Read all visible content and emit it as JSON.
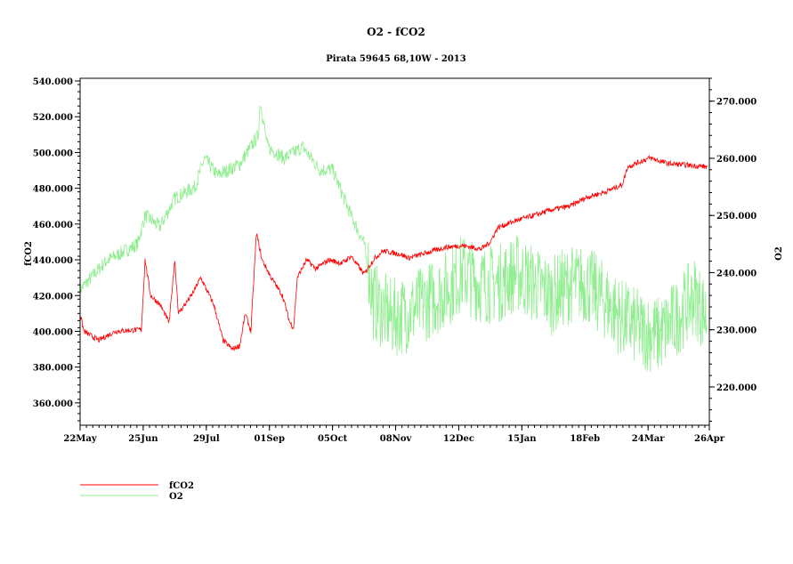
{
  "chart_data": {
    "type": "line",
    "title": "O2 - fCO2",
    "subtitle": "Pirata 59645 68,10W - 2013",
    "xlabel": "",
    "ylabel_left": "fCO2",
    "ylabel_right": "O2",
    "x_unit": "days since 22May",
    "xlim": [
      0,
      339
    ],
    "x_ticks": [
      {
        "day": 0,
        "label": "22May"
      },
      {
        "day": 34,
        "label": "25Jun"
      },
      {
        "day": 68,
        "label": "29Jul"
      },
      {
        "day": 102,
        "label": "01Sep"
      },
      {
        "day": 136,
        "label": "05Oct"
      },
      {
        "day": 170,
        "label": "08Nov"
      },
      {
        "day": 204,
        "label": "12Dec"
      },
      {
        "day": 238,
        "label": "15Jan"
      },
      {
        "day": 272,
        "label": "18Feb"
      },
      {
        "day": 306,
        "label": "24Mar"
      },
      {
        "day": 339,
        "label": "26Apr"
      }
    ],
    "ylim_left": [
      347.5,
      541.5
    ],
    "y_ticks_left": [
      "360.000",
      "380.000",
      "400.000",
      "420.000",
      "440.000",
      "460.000",
      "480.000",
      "500.000",
      "520.000",
      "540.000"
    ],
    "ylim_right": [
      213.3,
      274.0
    ],
    "y_ticks_right": [
      "220.000",
      "230.000",
      "240.000",
      "250.000",
      "260.000",
      "270.000"
    ],
    "legend": [
      {
        "name": "fCO2",
        "color": "#ff0000"
      },
      {
        "name": "O2",
        "color": "#90ee90"
      }
    ],
    "legend_placement": "bottom-left",
    "series": [
      {
        "name": "fCO2",
        "axis": "left",
        "color": "#ff0000",
        "points": [
          [
            0,
            410
          ],
          [
            2,
            400
          ],
          [
            10,
            395
          ],
          [
            19,
            400
          ],
          [
            33,
            401
          ],
          [
            35,
            440
          ],
          [
            38,
            420
          ],
          [
            43,
            415
          ],
          [
            48,
            405
          ],
          [
            51,
            440
          ],
          [
            53,
            410
          ],
          [
            60,
            420
          ],
          [
            65,
            430
          ],
          [
            72,
            415
          ],
          [
            77,
            395
          ],
          [
            82,
            390
          ],
          [
            86,
            392
          ],
          [
            89,
            410
          ],
          [
            92,
            400
          ],
          [
            95,
            455
          ],
          [
            98,
            440
          ],
          [
            103,
            430
          ],
          [
            109,
            420
          ],
          [
            113,
            405
          ],
          [
            115,
            402
          ],
          [
            117,
            430
          ],
          [
            122,
            440
          ],
          [
            127,
            435
          ],
          [
            134,
            440
          ],
          [
            141,
            438
          ],
          [
            146,
            442
          ],
          [
            153,
            432
          ],
          [
            158,
            440
          ],
          [
            163,
            445
          ],
          [
            173,
            443
          ],
          [
            177,
            441
          ],
          [
            187,
            444
          ],
          [
            197,
            447
          ],
          [
            206,
            448
          ],
          [
            216,
            446
          ],
          [
            221,
            450
          ],
          [
            225,
            458
          ],
          [
            235,
            462
          ],
          [
            245,
            465
          ],
          [
            254,
            468
          ],
          [
            264,
            470
          ],
          [
            273,
            475
          ],
          [
            283,
            478
          ],
          [
            292,
            482
          ],
          [
            295,
            492
          ],
          [
            302,
            495
          ],
          [
            307,
            497
          ],
          [
            316,
            494
          ],
          [
            326,
            493
          ],
          [
            338,
            492
          ]
        ]
      },
      {
        "name": "O2",
        "axis": "right",
        "color": "#90ee90",
        "points": [
          [
            0,
            237
          ],
          [
            14,
            242
          ],
          [
            31,
            245
          ],
          [
            35,
            250
          ],
          [
            43,
            248
          ],
          [
            51,
            253
          ],
          [
            62,
            255
          ],
          [
            67,
            260
          ],
          [
            74,
            257
          ],
          [
            86,
            259
          ],
          [
            96,
            264
          ],
          [
            97,
            270
          ],
          [
            101,
            262
          ],
          [
            110,
            260
          ],
          [
            120,
            262
          ],
          [
            129,
            258
          ],
          [
            136,
            258
          ],
          [
            146,
            250
          ],
          [
            153,
            245
          ],
          [
            158,
            235
          ],
          [
            168,
            232
          ],
          [
            177,
            233
          ],
          [
            187,
            235
          ],
          [
            197,
            237
          ],
          [
            206,
            240
          ],
          [
            216,
            238
          ],
          [
            225,
            238
          ],
          [
            235,
            240
          ],
          [
            245,
            238
          ],
          [
            254,
            236
          ],
          [
            264,
            238
          ],
          [
            273,
            238
          ],
          [
            283,
            235
          ],
          [
            292,
            232
          ],
          [
            302,
            230
          ],
          [
            312,
            229
          ],
          [
            321,
            232
          ],
          [
            331,
            236
          ],
          [
            338,
            232
          ]
        ]
      }
    ]
  }
}
